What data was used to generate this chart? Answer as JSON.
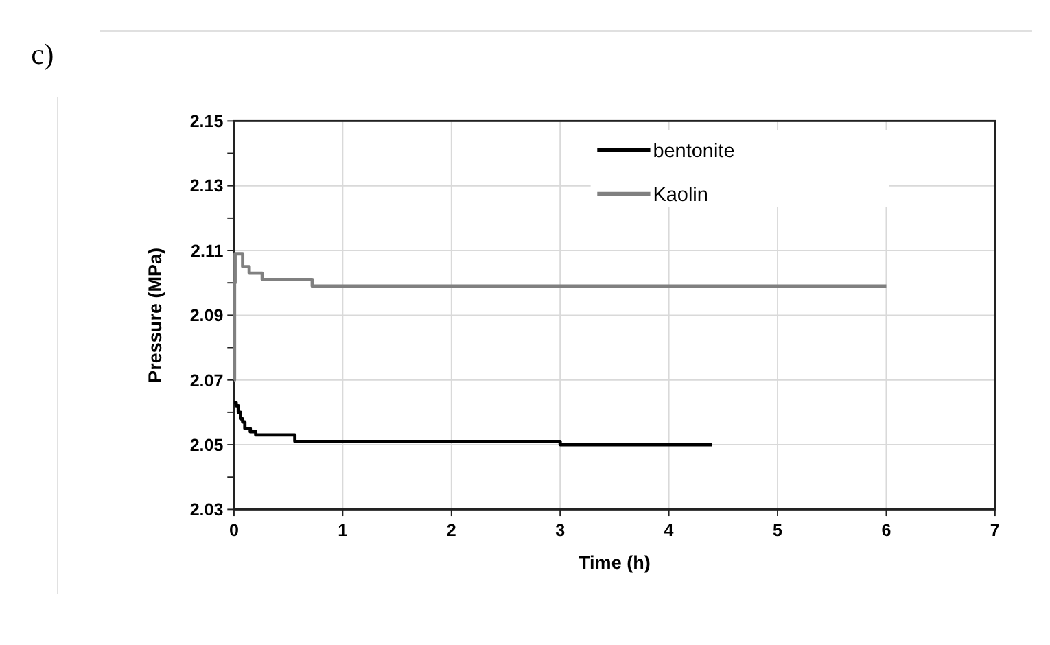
{
  "chart_data": {
    "type": "line",
    "title": "c)",
    "xlabel": "Time (h)",
    "ylabel": "Pressure (MPa)",
    "xlim": [
      0,
      7
    ],
    "xticks": [
      0,
      1,
      2,
      3,
      4,
      5,
      6,
      7
    ],
    "ylim": [
      2.03,
      2.15
    ],
    "yticks": [
      2.03,
      {
        "value": 2.04,
        "label": null
      },
      2.05,
      {
        "value": 2.06,
        "label": null
      },
      2.07,
      {
        "value": 2.08,
        "label": null
      },
      2.09,
      {
        "value": 2.1,
        "label": null
      },
      2.11,
      {
        "value": 2.12,
        "label": null
      },
      2.13,
      {
        "value": 2.14,
        "label": null
      },
      2.15
    ],
    "grid": true,
    "legend": "top right",
    "marker": "none",
    "line_style": "solid",
    "series": [
      {
        "name": "bentonite",
        "color": "#000000",
        "x": [
          0,
          0.02,
          0.04,
          0.06,
          0.08,
          0.1,
          0.15,
          0.2,
          0.55,
          0.56,
          0.6,
          0.7,
          1.2,
          2,
          3,
          3.3,
          3.4,
          4.4
        ],
        "values": [
          2.063,
          2.062,
          2.06,
          2.058,
          2.057,
          2.055,
          2.054,
          2.053,
          2.053,
          2.051,
          2.051,
          2.051,
          2.051,
          2.051,
          2.05,
          2.05,
          2.05,
          2.05
        ]
      },
      {
        "name": "Kaolin",
        "color": "#808080",
        "x": [
          0,
          0.005,
          0.01,
          0.07,
          0.08,
          0.13,
          0.14,
          0.25,
          0.26,
          0.7,
          0.72,
          1.5,
          2.2,
          3.1,
          6
        ],
        "values": [
          2.07,
          2.1,
          2.109,
          2.109,
          2.105,
          2.105,
          2.103,
          2.103,
          2.101,
          2.101,
          2.099,
          2.099,
          2.099,
          2.099,
          2.099
        ]
      }
    ]
  }
}
